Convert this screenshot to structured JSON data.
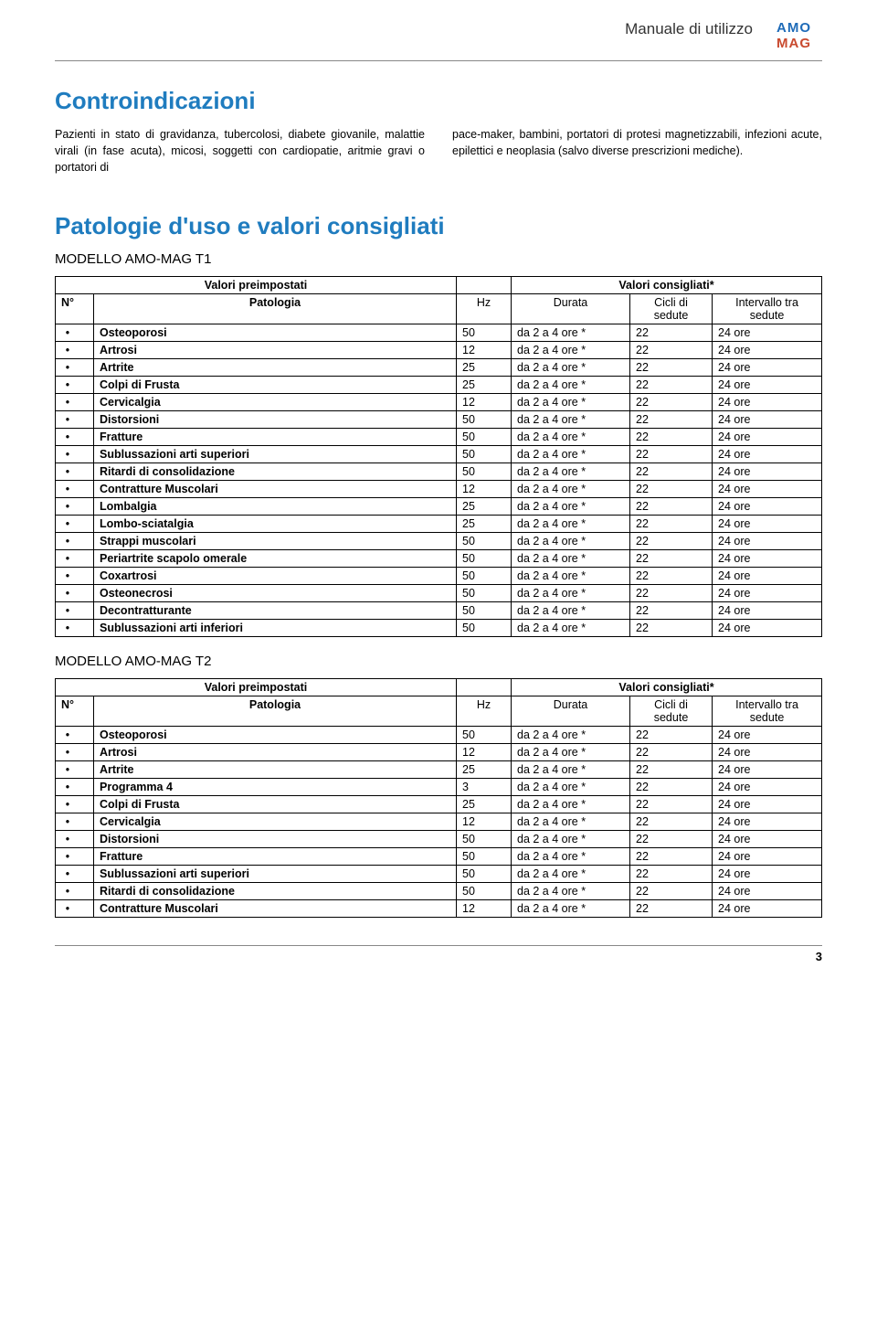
{
  "header": {
    "title": "Manuale di utilizzo",
    "logo_line1": "AMO",
    "logo_line2": "MAG"
  },
  "contra": {
    "heading": "Controindicazioni",
    "col1": "Pazienti in stato di gravidanza, tubercolosi, diabete giovanile, malattie virali (in fase acuta), micosi, soggetti con cardiopatie, aritmie gravi o portatori di",
    "col2": "pace-maker, bambini, portatori di protesi magnetizzabili, infezioni acute, epilettici e neoplasia (salvo diverse prescrizioni mediche)."
  },
  "pathos": {
    "heading": "Patologie d'uso e valori consigliati"
  },
  "tableLabels": {
    "preimpostati": "Valori preimpostati",
    "consigliati": "Valori consigliati*",
    "n": "N°",
    "patologia": "Patologia",
    "hz": "Hz",
    "durata": "Durata",
    "cicli": "Cicli di sedute",
    "intervallo": "Intervallo tra sedute"
  },
  "commonDurata": "da 2 a 4 ore *",
  "commonCicli": "22",
  "commonIntervallo": "24 ore",
  "t1": {
    "title": "MODELLO AMO-MAG T1",
    "rows": [
      {
        "pat": "Osteoporosi",
        "hz": "50"
      },
      {
        "pat": "Artrosi",
        "hz": "12"
      },
      {
        "pat": "Artrite",
        "hz": "25"
      },
      {
        "pat": "Colpi di Frusta",
        "hz": "25"
      },
      {
        "pat": "Cervicalgia",
        "hz": "12"
      },
      {
        "pat": "Distorsioni",
        "hz": "50"
      },
      {
        "pat": "Fratture",
        "hz": "50"
      },
      {
        "pat": "Sublussazioni arti superiori",
        "hz": "50"
      },
      {
        "pat": "Ritardi di consolidazione",
        "hz": "50"
      },
      {
        "pat": "Contratture Muscolari",
        "hz": "12"
      },
      {
        "pat": "Lombalgia",
        "hz": "25"
      },
      {
        "pat": "Lombo-sciatalgia",
        "hz": "25"
      },
      {
        "pat": "Strappi muscolari",
        "hz": "50"
      },
      {
        "pat": "Periartrite scapolo omerale",
        "hz": "50"
      },
      {
        "pat": "Coxartrosi",
        "hz": "50"
      },
      {
        "pat": "Osteonecrosi",
        "hz": "50"
      },
      {
        "pat": "Decontratturante",
        "hz": "50"
      },
      {
        "pat": "Sublussazioni arti inferiori",
        "hz": "50"
      }
    ]
  },
  "t2": {
    "title": "MODELLO AMO-MAG T2",
    "rows": [
      {
        "pat": "Osteoporosi",
        "hz": "50"
      },
      {
        "pat": "Artrosi",
        "hz": "12"
      },
      {
        "pat": "Artrite",
        "hz": "25"
      },
      {
        "pat": "Programma 4",
        "hz": "3"
      },
      {
        "pat": "Colpi di Frusta",
        "hz": "25"
      },
      {
        "pat": "Cervicalgia",
        "hz": "12"
      },
      {
        "pat": "Distorsioni",
        "hz": "50"
      },
      {
        "pat": "Fratture",
        "hz": "50"
      },
      {
        "pat": "Sublussazioni arti superiori",
        "hz": "50"
      },
      {
        "pat": "Ritardi di consolidazione",
        "hz": "50"
      },
      {
        "pat": "Contratture Muscolari",
        "hz": "12"
      }
    ]
  },
  "pageNumber": "3"
}
